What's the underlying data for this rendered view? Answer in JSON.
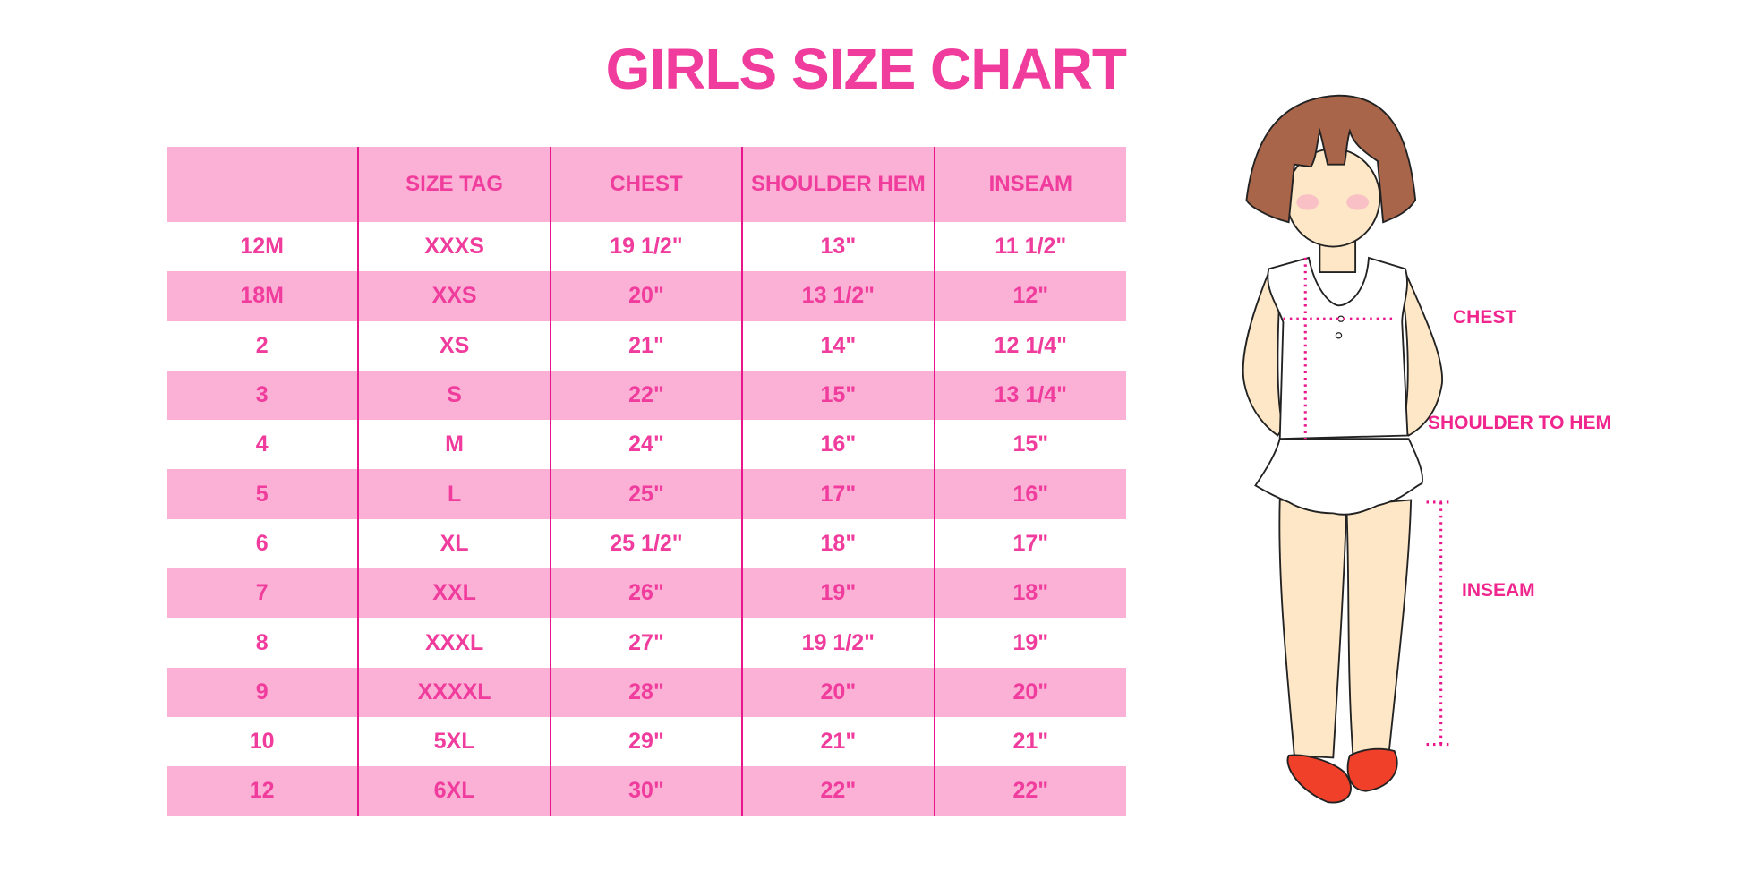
{
  "title": "GIRLS SIZE CHART",
  "table": {
    "headers": [
      "",
      "SIZE TAG",
      "CHEST",
      "SHOULDER HEM",
      "INSEAM"
    ],
    "rows": [
      [
        "12M",
        "XXXS",
        "19 1/2\"",
        "13\"",
        "11 1/2\""
      ],
      [
        "18M",
        "XXS",
        "20\"",
        "13 1/2\"",
        "12\""
      ],
      [
        "2",
        "XS",
        "21\"",
        "14\"",
        "12 1/4\""
      ],
      [
        "3",
        "S",
        "22\"",
        "15\"",
        "13 1/4\""
      ],
      [
        "4",
        "M",
        "24\"",
        "16\"",
        "15\""
      ],
      [
        "5",
        "L",
        "25\"",
        "17\"",
        "16\""
      ],
      [
        "6",
        "XL",
        "25 1/2\"",
        "18\"",
        "17\""
      ],
      [
        "7",
        "XXL",
        "26\"",
        "19\"",
        "18\""
      ],
      [
        "8",
        "XXXL",
        "27\"",
        "19 1/2\"",
        "19\""
      ],
      [
        "9",
        "XXXXL",
        "28\"",
        "20\"",
        "20\""
      ],
      [
        "10",
        "5XL",
        "29\"",
        "21\"",
        "21\""
      ],
      [
        "12",
        "6XL",
        "30\"",
        "22\"",
        "22\""
      ]
    ]
  },
  "figure": {
    "labels": {
      "chest": "CHEST",
      "shoulder_to_hem": "SHOULDER TO HEM",
      "inseam": "INSEAM"
    }
  },
  "colors": {
    "accent": "#f03c9c",
    "stripe": "#fbb0d5",
    "divider": "#e8168a",
    "hair": "#a8654a",
    "skin": "#fde7c6",
    "shoes": "#f0402a"
  }
}
